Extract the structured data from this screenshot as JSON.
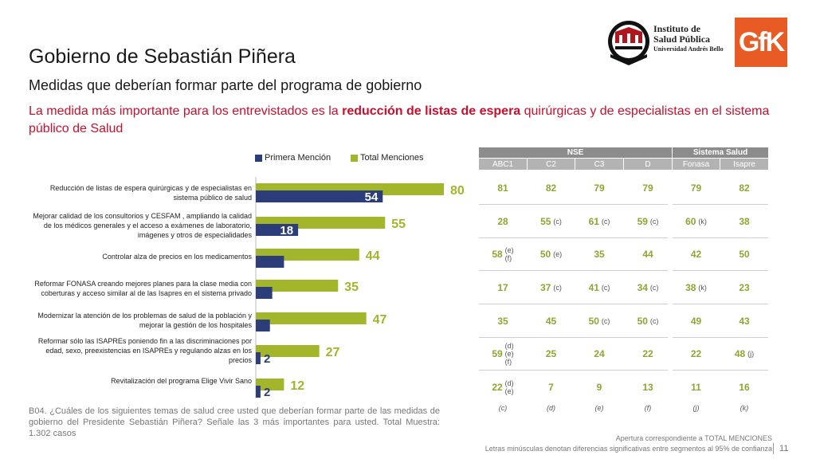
{
  "header": {
    "title": "Gobierno de Sebastián Piñera",
    "subtitle": "Medidas que deberían formar parte del programa de gobierno",
    "headline_pre": "La medida más importante para los entrevistados es la ",
    "headline_bold": "reducción de listas de espera",
    "headline_post": " quirúrgicas y de especialistas en el sistema público de Salud"
  },
  "logos": {
    "isp_line1": "Instituto de",
    "isp_line2": "Salud Pública",
    "isp_line3": "Universidad Andrés Bello",
    "gfk": "GfK"
  },
  "colors": {
    "primera": "#2c3e7a",
    "total": "#a3b52a",
    "table_header": "#8c8c8c",
    "table_sub": "#b3b3b3",
    "headline": "#c8102e"
  },
  "chart_data": {
    "type": "bar",
    "orientation": "horizontal",
    "categories": [
      "Reducción de listas de espera quirúrgicas y de especialistas en sistema público de salud",
      "Mejorar calidad de los consultorios y CESFAM , ampliando la calidad de los médicos generales y el  acceso a exámenes de laboratorio, imágenes y otros de especialidades",
      "Controlar alza de precios en los medicamentos",
      "Reformar FONASA creando mejores planes para la clase media con coberturas y acceso similar al de las Isapres en el sistema privado",
      "Modernizar la atención de los problemas de salud de la población y mejorar la gestión de los hospitales",
      "Reformar sólo las ISAPREs poniendo fin a las discriminaciones por edad, sexo, preexistencias en ISAPREs y regulando alzas en los precios",
      "Revitalización del programa Elige Vivir Sano"
    ],
    "series": [
      {
        "name": "Primera Mención",
        "values": [
          54,
          18,
          12,
          7,
          6,
          2,
          2
        ]
      },
      {
        "name": "Total Menciones",
        "values": [
          80,
          55,
          44,
          35,
          47,
          27,
          12
        ]
      }
    ],
    "xlim": [
      0,
      100
    ],
    "legend_position": "top"
  },
  "table": {
    "group_headers": [
      {
        "label": "NSE",
        "span": 4
      },
      {
        "label": "Sistema Salud",
        "span": 2
      }
    ],
    "columns": [
      "ABC1",
      "C2",
      "C3",
      "D",
      "Fonasa",
      "Isapre"
    ],
    "rows": [
      [
        [
          "81",
          ""
        ],
        [
          "82",
          ""
        ],
        [
          "79",
          ""
        ],
        [
          "79",
          ""
        ],
        [
          "79",
          ""
        ],
        [
          "82",
          ""
        ]
      ],
      [
        [
          "28",
          ""
        ],
        [
          "55",
          "(c)"
        ],
        [
          "61",
          "(c)"
        ],
        [
          "59",
          "(c)"
        ],
        [
          "60",
          "(k)"
        ],
        [
          "38",
          ""
        ]
      ],
      [
        [
          "58",
          "(e)|(f)"
        ],
        [
          "50",
          "(e)"
        ],
        [
          "35",
          ""
        ],
        [
          "44",
          ""
        ],
        [
          "42",
          ""
        ],
        [
          "50",
          ""
        ]
      ],
      [
        [
          "17",
          ""
        ],
        [
          "37",
          "(c)"
        ],
        [
          "41",
          "(c)"
        ],
        [
          "34",
          "(c)"
        ],
        [
          "38",
          "(k)"
        ],
        [
          "23",
          ""
        ]
      ],
      [
        [
          "35",
          ""
        ],
        [
          "45",
          ""
        ],
        [
          "50",
          "(c)"
        ],
        [
          "50",
          "(c)"
        ],
        [
          "49",
          ""
        ],
        [
          "43",
          ""
        ]
      ],
      [
        [
          "59",
          "(d)|(e)|(f)"
        ],
        [
          "25",
          ""
        ],
        [
          "24",
          ""
        ],
        [
          "22",
          ""
        ],
        [
          "22",
          ""
        ],
        [
          "48",
          "(j)"
        ]
      ],
      [
        [
          "22",
          "(d)|(e)"
        ],
        [
          "7",
          ""
        ],
        [
          "9",
          ""
        ],
        [
          "13",
          ""
        ],
        [
          "11",
          ""
        ],
        [
          "16",
          ""
        ]
      ]
    ],
    "segment_letters": [
      "(c)",
      "(d)",
      "(e)",
      "(f)",
      "(j)",
      "(k)"
    ]
  },
  "footer": {
    "question": "B04. ¿Cuáles de los siguientes temas de salud cree usted que deberían formar parte de las medidas de gobierno del Presidente Sebastián Piñera? Señale las 3 más importantes para usted. Total Muestra: 1.302 casos",
    "note1": "Apertura correspondiente a TOTAL MENCIONES",
    "note2": "Letras minúsculas denotan diferencias significativas entre segmentos al 95% de confianza",
    "page": "11"
  }
}
